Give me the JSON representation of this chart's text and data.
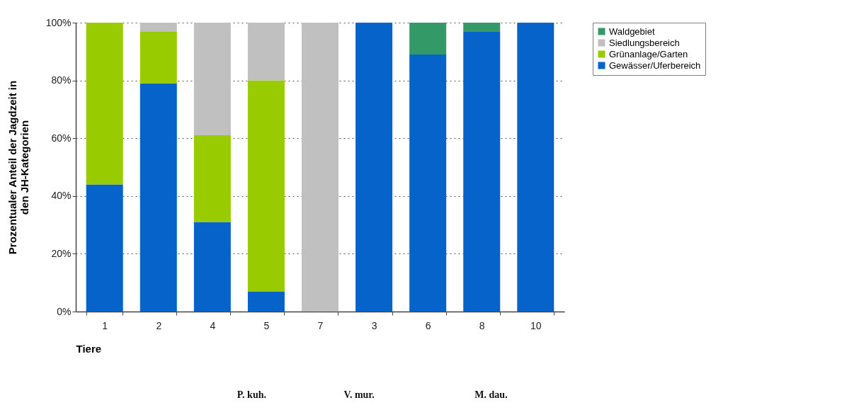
{
  "chart_data": {
    "type": "bar",
    "stacked": true,
    "xlabel": "Tiere",
    "ylabel": "Prozentualer Anteil der Jagdzeit in\nden JH-Kategorien",
    "categories": [
      "1",
      "2",
      "4",
      "5",
      "7",
      "3",
      "6",
      "8",
      "10"
    ],
    "series": [
      {
        "name": "Gewässer/Uferbereich",
        "color": "#0563c9",
        "values": [
          44,
          79,
          31,
          7,
          0,
          100,
          89,
          97,
          100
        ]
      },
      {
        "name": "Grünanlage/Garten",
        "color": "#99cc00",
        "values": [
          56,
          18,
          30,
          73,
          0,
          0,
          0,
          0,
          0
        ]
      },
      {
        "name": "Siedlungsbereich",
        "color": "#c0c0c0",
        "values": [
          0,
          3,
          39,
          20,
          100,
          0,
          0,
          0,
          0
        ]
      },
      {
        "name": "Waldgebiet",
        "color": "#339966",
        "values": [
          0,
          0,
          0,
          0,
          0,
          0,
          11,
          3,
          0
        ]
      }
    ],
    "ylim": [
      0,
      100
    ],
    "yticks": [
      {
        "value": 0,
        "label": "0%"
      },
      {
        "value": 20,
        "label": "20%"
      },
      {
        "value": 40,
        "label": "40%"
      },
      {
        "value": 60,
        "label": "60%"
      },
      {
        "value": 80,
        "label": "80%"
      },
      {
        "value": 100,
        "label": "100%"
      }
    ],
    "grid": "y",
    "legend": "right",
    "annotations": [
      "P. kuh.",
      "V. mur.",
      "M. dau."
    ]
  }
}
